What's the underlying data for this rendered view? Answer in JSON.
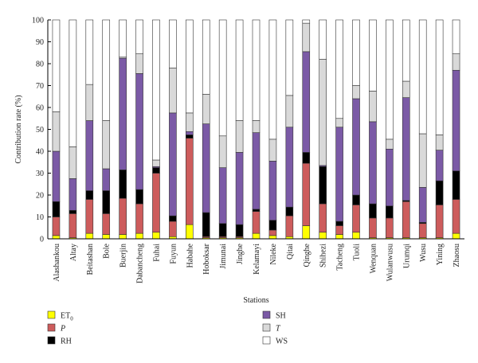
{
  "chart_data": {
    "type": "bar",
    "stacked": true,
    "title": "",
    "xlabel": "Stations",
    "ylabel": "Contribution rate (%)",
    "ylim": [
      0,
      100
    ],
    "yticks": [
      0,
      10,
      20,
      30,
      40,
      50,
      60,
      70,
      80,
      90,
      100
    ],
    "categories": [
      "Alashankou",
      "Altay",
      "Beitashan",
      "Bole",
      "Buerjin",
      "Dabancheng",
      "Fuhai",
      "Fuyun",
      "Habahe",
      "Hoboksar",
      "Jimunai",
      "Jinghe",
      "Kelamayi",
      "Nileke",
      "Qitai",
      "Qinghe",
      "Shihezi",
      "Tacheng",
      "Tuoli",
      "Wenquan",
      "Wulanwusu",
      "Urumqi",
      "Wusu",
      "Yining",
      "Zhaosu"
    ],
    "series": [
      {
        "name": "ET",
        "sub": "0",
        "italic": false,
        "color": "#ffff00",
        "values": [
          1.5,
          0.5,
          2.5,
          2,
          2,
          2.5,
          3,
          1,
          6.5,
          0.5,
          0.5,
          0.5,
          2.5,
          1.5,
          1,
          6,
          3,
          2,
          3,
          0.5,
          0.5,
          0.5,
          0.5,
          0.5,
          2.5
        ]
      },
      {
        "name": "P",
        "sub": "",
        "italic": true,
        "color": "#cd5c5c",
        "values": [
          8.5,
          11,
          15.5,
          9.5,
          16.5,
          13.5,
          27,
          7,
          39.5,
          0.5,
          0.5,
          0.5,
          10,
          2.5,
          9.5,
          28.5,
          13,
          4,
          12.5,
          9,
          9,
          16.5,
          6.5,
          15,
          15.5
        ]
      },
      {
        "name": "RH",
        "sub": "",
        "italic": false,
        "color": "#000000",
        "values": [
          7,
          1.5,
          4,
          10.5,
          13,
          6.5,
          2.5,
          2.5,
          1.5,
          11,
          6,
          5.5,
          1,
          4.5,
          4,
          5,
          17,
          2,
          4.5,
          6.5,
          5.5,
          0.5,
          0.5,
          11,
          13
        ]
      },
      {
        "name": "SH",
        "sub": "",
        "italic": false,
        "color": "#7b5aa6",
        "values": [
          23,
          14.5,
          32,
          10,
          51,
          53,
          0.5,
          47,
          1.5,
          40.5,
          25.5,
          33,
          35,
          27,
          36.5,
          46,
          0.5,
          43,
          44,
          37.5,
          26,
          47,
          16,
          14,
          46
        ]
      },
      {
        "name": "T",
        "sub": "",
        "italic": true,
        "color": "#d9d9d9",
        "values": [
          18,
          14.5,
          16.5,
          22,
          0.5,
          9,
          3,
          20.5,
          8.5,
          13.5,
          14.5,
          14.5,
          5.5,
          10,
          14.5,
          13,
          48.5,
          4,
          6,
          14,
          4.5,
          7.5,
          24.5,
          7,
          7.5
        ]
      },
      {
        "name": "WS",
        "sub": "",
        "italic": false,
        "color": "#ffffff",
        "values": [
          42,
          58,
          29.5,
          46,
          17,
          15.5,
          64,
          22,
          42.5,
          34,
          53,
          46,
          46,
          54.5,
          34.5,
          1.5,
          18,
          45,
          30,
          32.5,
          54.5,
          28,
          52,
          52.5,
          15.5
        ]
      }
    ],
    "legend_placement": "bottom",
    "legend_columns": [
      [
        "ET",
        "P",
        "RH"
      ],
      [
        "SH",
        "T",
        "WS"
      ]
    ],
    "grid": false
  }
}
